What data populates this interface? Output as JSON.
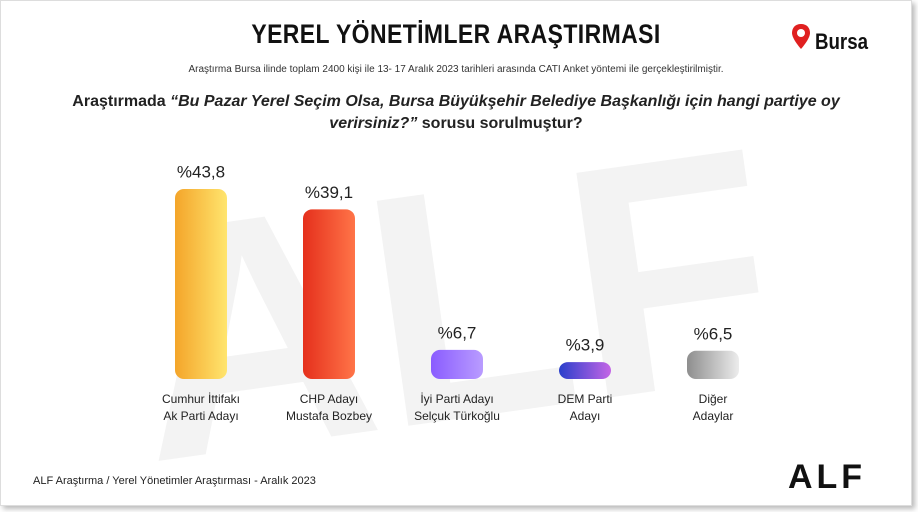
{
  "chart_data": {
    "type": "bar",
    "title": "YEREL YÖNETİMLER ARAŞTIRMASI",
    "location": "Bursa",
    "subtitle": "Araştırma Bursa ilinde toplam 2400 kişi ile 13- 17  Aralık 2023 tarihleri arasında CATI Anket yöntemi ile gerçekleştirilmiştir.",
    "question": [
      "Araştırmada ",
      "“Bu Pazar Yerel Seçim Olsa, Bursa Büyükşehir Belediye Başkanlığı için hangi partiye oy verirsiniz?”",
      " sorusu  sorulmuştur?"
    ],
    "categories": [
      [
        "Cumhur İttifakı",
        "Ak Parti Adayı"
      ],
      [
        "CHP Adayı",
        "Mustafa Bozbey"
      ],
      [
        "İyi Parti Adayı",
        "Selçuk Türkoğlu"
      ],
      [
        "DEM Parti",
        "Adayı"
      ],
      [
        "Diğer",
        "Adaylar"
      ]
    ],
    "values": [
      43.8,
      39.1,
      6.7,
      3.9,
      6.5
    ],
    "value_labels": [
      "%43,8",
      "%39,1",
      "%6,7",
      "%3,9",
      "%6,5"
    ],
    "colors": [
      [
        "#f4a52a",
        "#ffe56e"
      ],
      [
        "#e5301c",
        "#ff7448"
      ],
      [
        "#8a5cff",
        "#b99cff"
      ],
      [
        "#2a3fcb",
        "#c465e6"
      ],
      [
        "#8e8e8e",
        "#ececec"
      ]
    ],
    "watermark": "ALF",
    "footer": "ALF Araştırma / Yerel Yönetimler Araştırması - Aralık 2023",
    "logo": "ALF"
  }
}
